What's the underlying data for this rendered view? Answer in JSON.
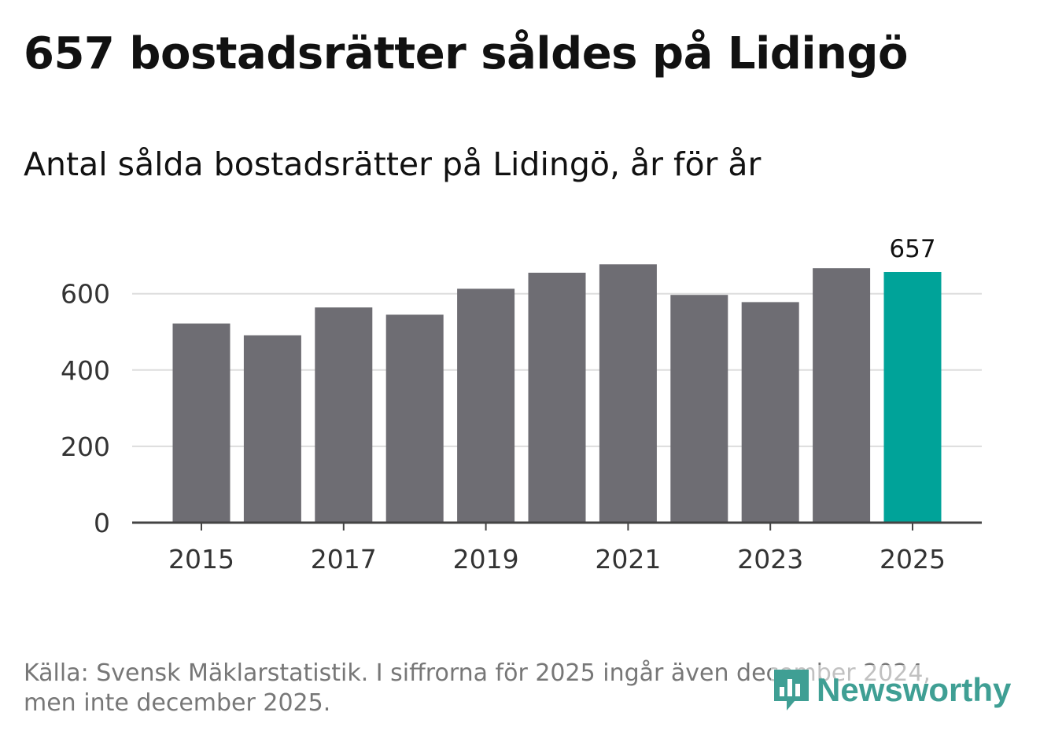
{
  "header": {
    "title": "657 bostadsrätter såldes på Lidingö",
    "subtitle": "Antal sålda bostadsrätter på Lidingö, år för år"
  },
  "footer": {
    "source_line_1": "Källa: Svensk Mäklarstatistik. I siffrorna för 2025 ingår även december 2024,",
    "source_line_2": "men inte december 2025.",
    "brand": "Newsworthy"
  },
  "colors": {
    "bar": "#6e6d73",
    "highlight": "#00a399",
    "grid": "#dddddd",
    "axis": "#444444",
    "brand": "#3f9f94"
  },
  "chart_data": {
    "type": "bar",
    "title": "Antal sålda bostadsrätter på Lidingö, år för år",
    "xlabel": "",
    "ylabel": "",
    "categories": [
      "2015",
      "2016",
      "2017",
      "2018",
      "2019",
      "2020",
      "2021",
      "2022",
      "2023",
      "2024",
      "2025"
    ],
    "values": [
      522,
      491,
      564,
      545,
      613,
      655,
      677,
      597,
      578,
      667,
      657
    ],
    "highlight_index": 10,
    "highlight_label": "657",
    "x_tick_labels": [
      "2015",
      "2017",
      "2019",
      "2021",
      "2023",
      "2025"
    ],
    "y_ticks": [
      0,
      200,
      400,
      600
    ],
    "ylim": [
      0,
      720
    ],
    "grid": true,
    "legend": "none"
  }
}
